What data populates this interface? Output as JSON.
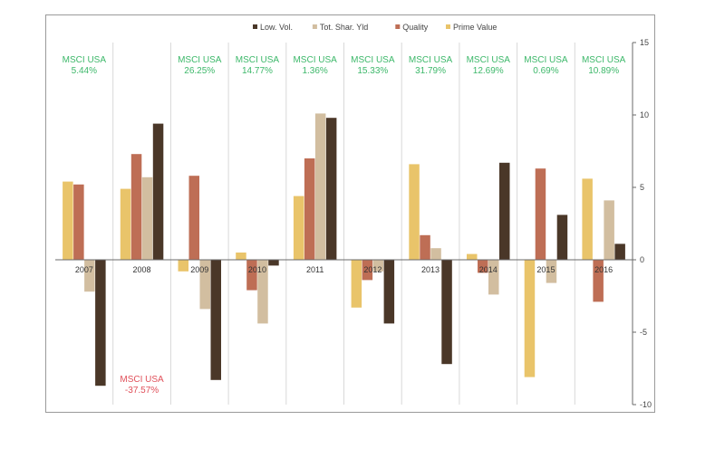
{
  "chart_data": {
    "type": "bar",
    "title": "",
    "xlabel": "",
    "ylabel": "",
    "ylim": [
      -10,
      15
    ],
    "yticks": [
      -10,
      -5,
      0,
      5,
      10,
      15
    ],
    "categories": [
      "2007",
      "2008",
      "2009",
      "2010",
      "2011",
      "2012",
      "2013",
      "2014",
      "2015",
      "2016"
    ],
    "series": [
      {
        "name": "Prime Value",
        "color": "#E9C46A",
        "values": [
          5.4,
          4.9,
          -0.8,
          0.5,
          4.4,
          -3.3,
          6.6,
          0.4,
          -8.1,
          5.6
        ]
      },
      {
        "name": "Quality",
        "color": "#BE6E55",
        "values": [
          5.2,
          7.3,
          5.8,
          -2.1,
          7.0,
          -1.4,
          1.7,
          -0.9,
          6.3,
          -2.9
        ]
      },
      {
        "name": "Tot. Shar. Yld",
        "color": "#D2BEA0",
        "values": [
          -2.2,
          5.7,
          -3.4,
          -4.4,
          10.1,
          -0.8,
          0.8,
          -2.4,
          -1.6,
          4.1
        ]
      },
      {
        "name": "Low. Vol.",
        "color": "#4A3728",
        "values": [
          -8.7,
          9.4,
          -8.3,
          -0.4,
          9.8,
          -4.4,
          -7.2,
          6.7,
          3.1,
          1.1
        ]
      }
    ],
    "legend_order": [
      "Low. Vol.",
      "Tot. Shar. Yld",
      "Quality",
      "Prime Value"
    ],
    "legend_position": "top",
    "grid": false,
    "annotations": [
      {
        "category": "2007",
        "label": "MSCI USA",
        "value": "5.44%",
        "color": "#3DB86A",
        "position": "top"
      },
      {
        "category": "2008",
        "label": "MSCI USA",
        "value": "-37.57%",
        "color": "#E0505A",
        "position": "bottom"
      },
      {
        "category": "2009",
        "label": "MSCI USA",
        "value": "26.25%",
        "color": "#3DB86A",
        "position": "top"
      },
      {
        "category": "2010",
        "label": "MSCI USA",
        "value": "14.77%",
        "color": "#3DB86A",
        "position": "top"
      },
      {
        "category": "2011",
        "label": "MSCI USA",
        "value": "1.36%",
        "color": "#3DB86A",
        "position": "top"
      },
      {
        "category": "2012",
        "label": "MSCI USA",
        "value": "15.33%",
        "color": "#3DB86A",
        "position": "top"
      },
      {
        "category": "2013",
        "label": "MSCI USA",
        "value": "31.79%",
        "color": "#3DB86A",
        "position": "top"
      },
      {
        "category": "2014",
        "label": "MSCI USA",
        "value": "12.69%",
        "color": "#3DB86A",
        "position": "top"
      },
      {
        "category": "2015",
        "label": "MSCI USA",
        "value": "0.69%",
        "color": "#3DB86A",
        "position": "top"
      },
      {
        "category": "2016",
        "label": "MSCI USA",
        "value": "10.89%",
        "color": "#3DB86A",
        "position": "top"
      }
    ]
  }
}
